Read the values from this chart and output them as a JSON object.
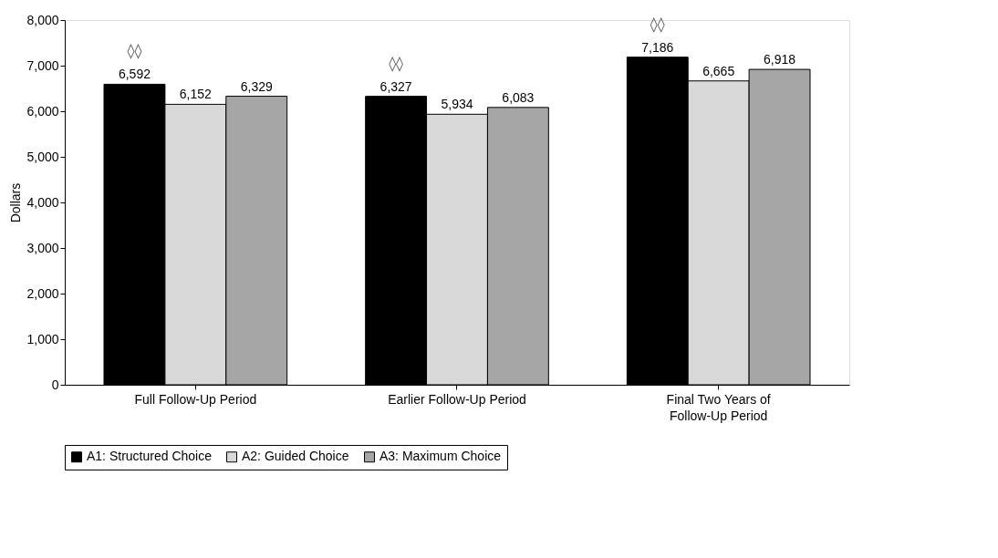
{
  "chart_data": {
    "type": "bar",
    "ylabel": "Dollars",
    "categories": [
      "Full Follow-Up Period",
      "Earlier Follow-Up Period",
      "Final Two Years of Follow-Up Period"
    ],
    "series": [
      {
        "name": "A1: Structured Choice",
        "color": "#000000",
        "values": [
          6592,
          6327,
          7186
        ],
        "value_labels": [
          "6,592",
          "6,327",
          "7,186"
        ]
      },
      {
        "name": "A2: Guided Choice",
        "color": "#d9d9d9",
        "values": [
          6152,
          5934,
          6665
        ],
        "value_labels": [
          "6,152",
          "5,934",
          "6,665"
        ]
      },
      {
        "name": "A3: Maximum Choice",
        "color": "#a6a6a6",
        "values": [
          6329,
          6083,
          6918
        ],
        "value_labels": [
          "6,329",
          "6,083",
          "6,918"
        ]
      }
    ],
    "ylim": [
      0,
      8000
    ],
    "yticks": [
      0,
      {
        "value": 1000,
        "label": "1,000"
      },
      {
        "value": 2000,
        "label": "2,000"
      },
      {
        "value": 3000,
        "label": "3,000"
      },
      {
        "value": 4000,
        "label": "4,000"
      },
      {
        "value": 5000,
        "label": "5,000"
      },
      {
        "value": 6000,
        "label": "6,000"
      },
      {
        "value": 7000,
        "label": "7,000"
      },
      {
        "value": 8000,
        "label": "8,000"
      }
    ],
    "grid": false,
    "legend": "bottom",
    "annotations": [
      "◊◊",
      "◊◊",
      "◊◊"
    ]
  }
}
